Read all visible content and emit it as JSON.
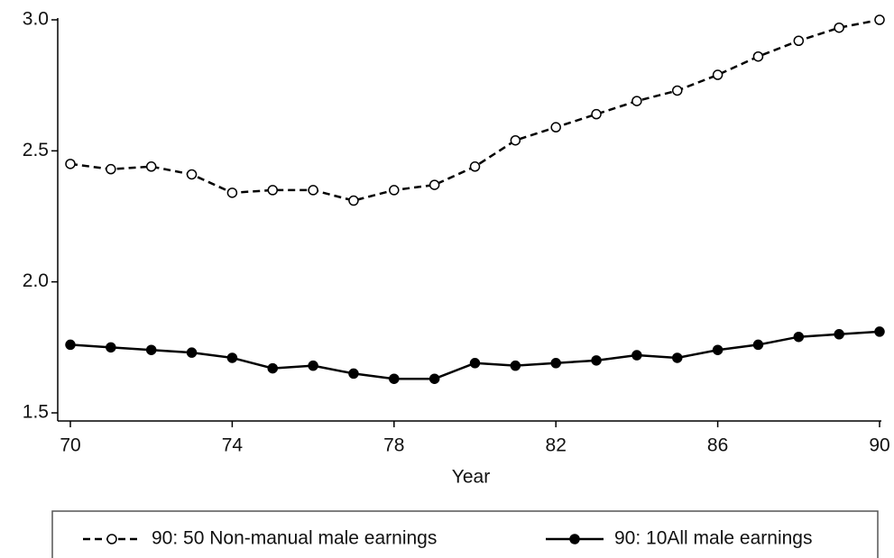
{
  "chart_data": {
    "type": "line",
    "xlabel": "Year",
    "x": [
      70,
      71,
      72,
      73,
      74,
      75,
      76,
      77,
      78,
      79,
      80,
      81,
      82,
      83,
      84,
      85,
      86,
      87,
      88,
      89,
      90
    ],
    "series": [
      {
        "name": "90: 50 Non-manual male earnings",
        "color": "#000000",
        "dashed": true,
        "marker": "hollow",
        "values": [
          2.45,
          2.43,
          2.44,
          2.41,
          2.34,
          2.35,
          2.35,
          2.31,
          2.35,
          2.37,
          2.44,
          2.54,
          2.59,
          2.64,
          2.69,
          2.73,
          2.79,
          2.86,
          2.92,
          2.97,
          3.0
        ]
      },
      {
        "name": "90: 10All male earnings",
        "color": "#000000",
        "dashed": false,
        "marker": "filled",
        "values": [
          1.76,
          1.75,
          1.74,
          1.73,
          1.71,
          1.67,
          1.68,
          1.65,
          1.63,
          1.63,
          1.69,
          1.68,
          1.69,
          1.7,
          1.72,
          1.71,
          1.74,
          1.76,
          1.79,
          1.8,
          1.81
        ]
      }
    ],
    "xlim": [
      70,
      90
    ],
    "xticks": [
      70,
      74,
      78,
      82,
      86,
      90
    ],
    "ylim": [
      1.5,
      3.0
    ],
    "yticks": [
      1.5,
      {
        "value": 2,
        "label": "2.0"
      },
      2.5,
      {
        "value": 3,
        "label": "3.0"
      }
    ],
    "legend": "bottom"
  }
}
